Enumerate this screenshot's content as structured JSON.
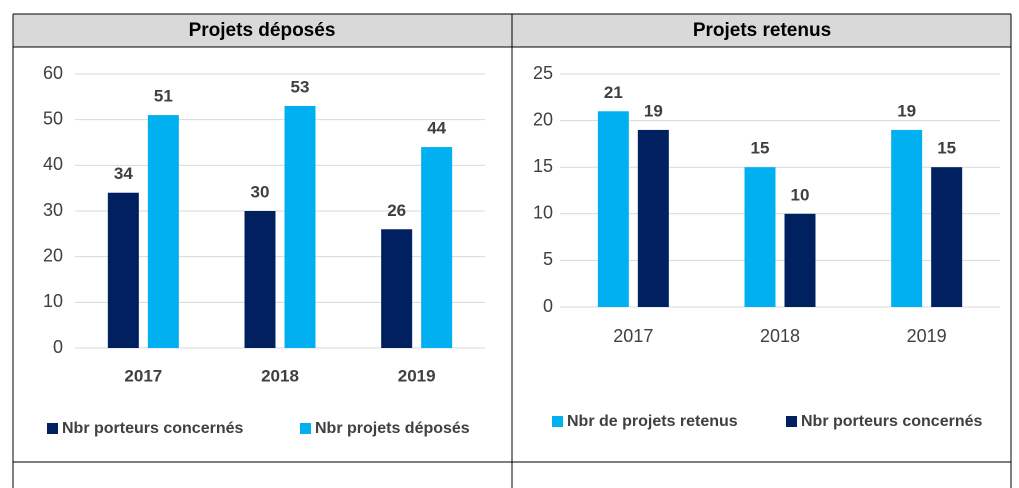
{
  "chart_data": [
    {
      "type": "bar",
      "title": "Projets déposés",
      "categories": [
        "2017",
        "2018",
        "2019"
      ],
      "series": [
        {
          "name": "Nbr porteurs concernés",
          "color": "#002060",
          "values": [
            34,
            30,
            26
          ]
        },
        {
          "name": "Nbr projets déposés",
          "color": "#00b0f0",
          "values": [
            51,
            53,
            44
          ]
        }
      ],
      "ylim": [
        0,
        60
      ],
      "yticks": [
        0,
        10,
        20,
        30,
        40,
        50,
        60
      ],
      "grid": true,
      "legend": "bottom"
    },
    {
      "type": "bar",
      "title": "Projets retenus",
      "categories": [
        "2017",
        "2018",
        "2019"
      ],
      "series": [
        {
          "name": "Nbr de projets retenus",
          "color": "#00b0f0",
          "values": [
            21,
            15,
            19
          ]
        },
        {
          "name": "Nbr porteurs concernés",
          "color": "#002060",
          "values": [
            19,
            10,
            15
          ]
        }
      ],
      "ylim": [
        0,
        25
      ],
      "yticks": [
        0,
        5,
        10,
        15,
        20,
        25
      ],
      "grid": true,
      "legend": "bottom"
    }
  ]
}
